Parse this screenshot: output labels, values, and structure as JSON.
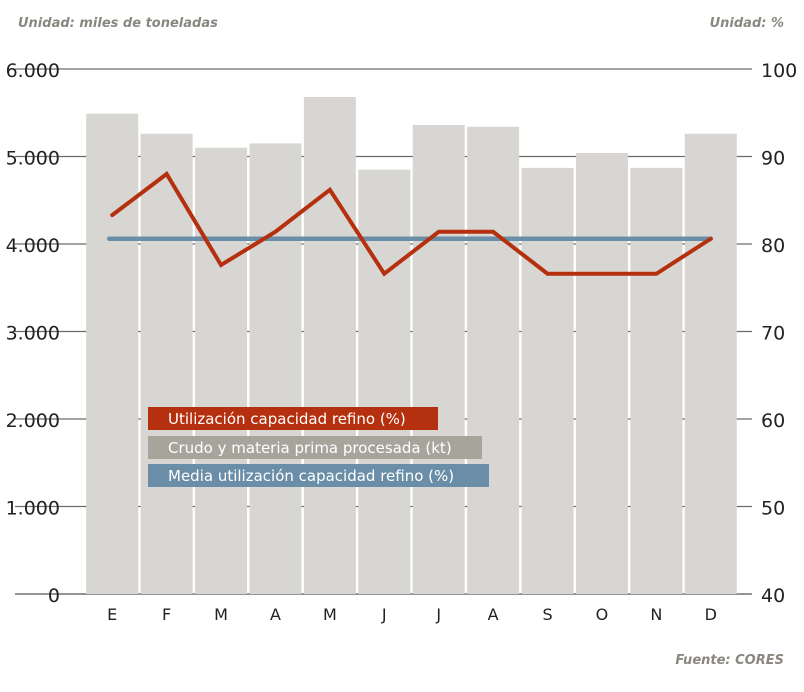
{
  "chart_data": {
    "type": "bar",
    "left_unit": "Unidad: miles de toneladas",
    "right_unit": "Unidad: %",
    "source": "Fuente: CORES",
    "categories": [
      "E",
      "F",
      "M",
      "A",
      "M",
      "J",
      "J",
      "A",
      "S",
      "O",
      "N",
      "D"
    ],
    "left_axis": {
      "ylim": [
        0,
        6000
      ],
      "ticks": [
        "0",
        "1.000",
        "2.000",
        "3.000",
        "4.000",
        "5.000",
        "6.000"
      ],
      "tick_values": [
        0,
        1000,
        2000,
        3000,
        4000,
        5000,
        6000
      ]
    },
    "right_axis": {
      "ylim": [
        40,
        100
      ],
      "ticks": [
        "40",
        "50",
        "60",
        "70",
        "80",
        "90",
        "100"
      ],
      "tick_values": [
        40,
        50,
        60,
        70,
        80,
        90,
        100
      ]
    },
    "series": [
      {
        "name": "Crudo y materia prima procesada (kt)",
        "type": "bar",
        "axis": "left",
        "color": "#d8d6d2",
        "legend_color": "#a7a49c",
        "values": [
          5490,
          5260,
          5100,
          5150,
          5680,
          4850,
          5360,
          5340,
          4870,
          5040,
          4870,
          5260
        ]
      },
      {
        "name": "Utilización capacidad refino (%)",
        "type": "line",
        "axis": "right",
        "color": "#b5300f",
        "values": [
          83.3,
          88.0,
          77.6,
          81.4,
          86.2,
          76.6,
          81.4,
          81.4,
          76.6,
          76.6,
          76.6,
          80.6
        ]
      },
      {
        "name": "Media utilización capacidad refino (%)",
        "type": "line",
        "axis": "right",
        "color": "#6b8ea8",
        "values": [
          80.6,
          80.6,
          80.6,
          80.6,
          80.6,
          80.6,
          80.6,
          80.6,
          80.6,
          80.6,
          80.6,
          80.6
        ]
      }
    ],
    "grid": true,
    "legend_placement": "center-left"
  }
}
